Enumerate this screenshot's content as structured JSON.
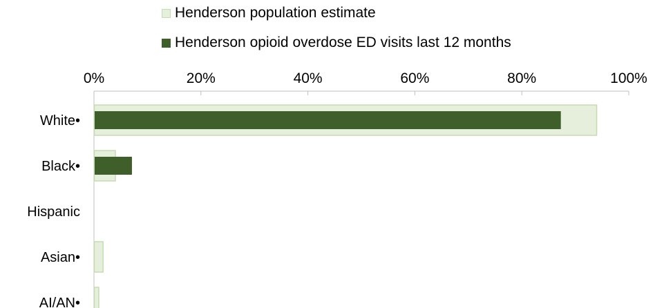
{
  "legend": {
    "population_label": "Henderson population estimate",
    "visits_label": "Henderson opioid overdose ED visits last 12 months"
  },
  "chart_data": {
    "type": "bar",
    "orientation": "horizontal",
    "title": "",
    "xlabel": "",
    "ylabel": "",
    "xlim": [
      0,
      100
    ],
    "x_ticks": [
      "0%",
      "20%",
      "40%",
      "60%",
      "80%",
      "100%"
    ],
    "categories": [
      "White•",
      "Black•",
      "Hispanic",
      "Asian•",
      "AI/AN•"
    ],
    "series": [
      {
        "name": "Henderson population estimate",
        "values": [
          94,
          4,
          0,
          1.7,
          0.9
        ],
        "color": "#e6efdc",
        "stroke": "#c5dbb0"
      },
      {
        "name": "Henderson opioid overdose ED visits last 12 months",
        "values": [
          87.3,
          7.1,
          0,
          0,
          0
        ],
        "color": "#3f5f2a"
      }
    ],
    "grid": false,
    "legend_position": "top"
  }
}
